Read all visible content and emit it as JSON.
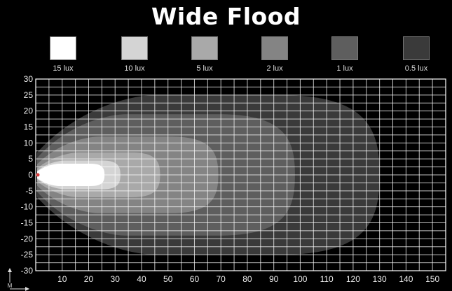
{
  "chart_data": {
    "type": "heatmap",
    "title": "Wide Flood",
    "ylabel": "M",
    "xlim": [
      0,
      155
    ],
    "ylim": [
      -30,
      30
    ],
    "x_ticks": [
      10,
      20,
      30,
      40,
      50,
      60,
      70,
      80,
      90,
      100,
      110,
      120,
      130,
      140,
      150
    ],
    "y_ticks": [
      30,
      25,
      20,
      15,
      10,
      5,
      0,
      -5,
      -10,
      -15,
      -20,
      -25,
      -30
    ],
    "grid": true,
    "legend_position": "top",
    "levels": [
      {
        "label": "0.5 lux",
        "color": "#3a3a3a",
        "reach_x": 130,
        "half_width": 25
      },
      {
        "label": "1 lux",
        "color": "#5e5e5e",
        "reach_x": 98,
        "half_width": 19
      },
      {
        "label": "2 lux",
        "color": "#848484",
        "reach_x": 69,
        "half_width": 12
      },
      {
        "label": "5 lux",
        "color": "#a9a9a9",
        "reach_x": 47,
        "half_width": 7
      },
      {
        "label": "10 lux",
        "color": "#d4d4d4",
        "reach_x": 32,
        "half_width": 4.5
      },
      {
        "label": "15 lux",
        "color": "#ffffff",
        "reach_x": 26,
        "half_width": 3.5
      }
    ],
    "legend": [
      {
        "label": "15 lux",
        "color": "#ffffff"
      },
      {
        "label": "10 lux",
        "color": "#d4d4d4"
      },
      {
        "label": "5 lux",
        "color": "#a9a9a9"
      },
      {
        "label": "2 lux",
        "color": "#848484"
      },
      {
        "label": "1 lux",
        "color": "#5e5e5e"
      },
      {
        "label": "0.5 lux",
        "color": "#3a3a3a"
      }
    ],
    "grid_color": "#ffffff",
    "background": "#000000"
  }
}
